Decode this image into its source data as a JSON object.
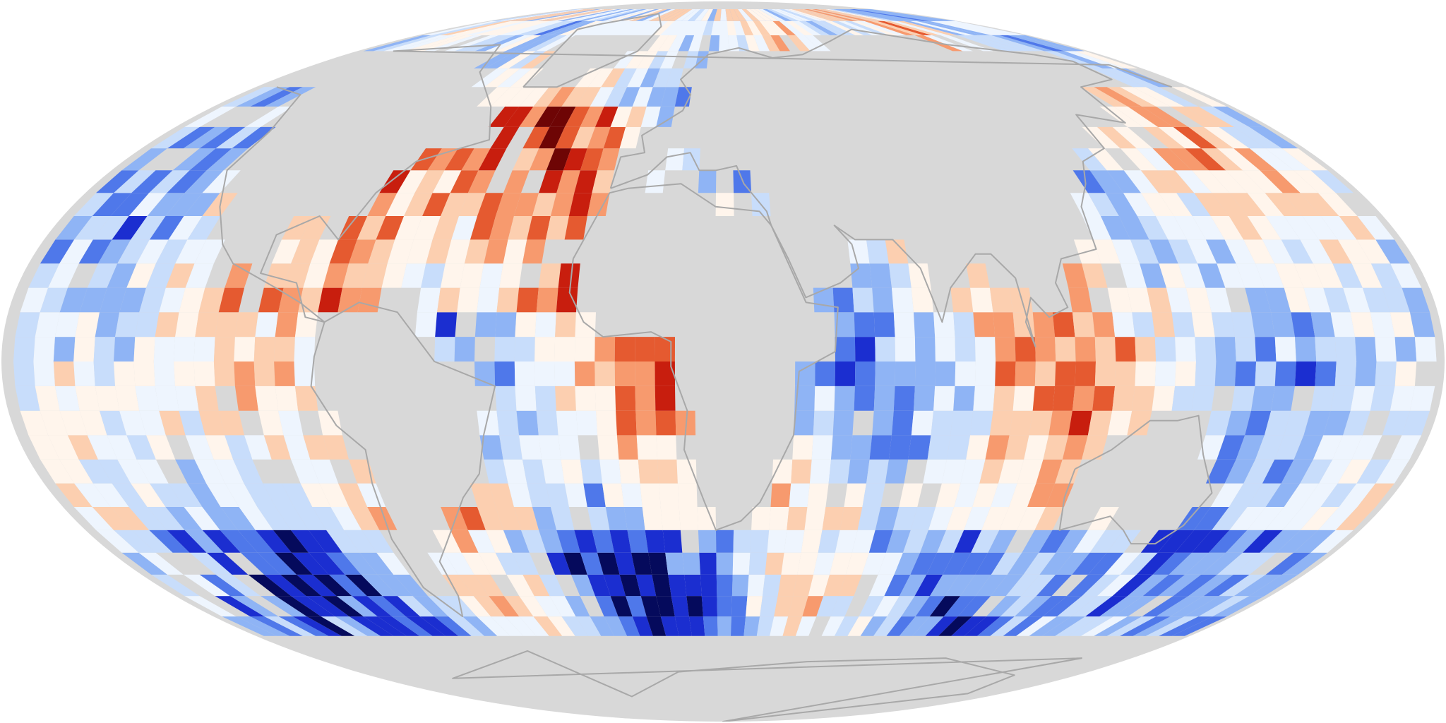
{
  "map": {
    "projection": "mollweide",
    "background": "#ffffff",
    "land_and_nodata_color": "#d8d8d8",
    "coastline_color": "#a8a8a8",
    "palette": [
      "#050a5c",
      "#1b2ed0",
      "#4f78ea",
      "#8fb4f5",
      "#c8ddfb",
      "#eef5fe",
      "#fff5ec",
      "#fccfb0",
      "#f79a6e",
      "#e55a30",
      "#c81e0e",
      "#6e0505"
    ],
    "seed": 20250211,
    "grid_step_deg": 5
  }
}
